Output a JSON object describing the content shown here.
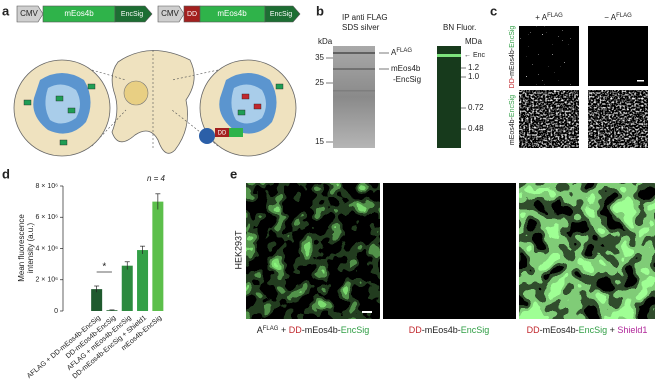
{
  "panel_a": {
    "label": "a",
    "constructs": [
      {
        "promoter": "CMV",
        "gene": "mEos4b",
        "tag": "EncSig"
      },
      {
        "promoter": "CMV",
        "degron": "DD",
        "gene": "mEos4b",
        "tag": "EncSig"
      }
    ],
    "degron_icon": "DD"
  },
  "panel_b": {
    "label": "b",
    "silver_gel": {
      "title": [
        "IP anti FLAG",
        "SDS silver"
      ],
      "unit": "kDa",
      "markers": [
        "35",
        "25",
        "15"
      ],
      "bands": [
        [
          "A",
          "FLAG"
        ],
        [
          "mEos4b",
          "-EncSig"
        ]
      ]
    },
    "native_gel": {
      "title": "BN Fluor.",
      "unit": "MDa",
      "band": "Enc",
      "markers": [
        "1.2",
        "1.0",
        "0.72",
        "0.48"
      ]
    }
  },
  "panel_c": {
    "label": "c",
    "columns": [
      [
        "+ A",
        "FLAG"
      ],
      [
        "− A",
        "FLAG"
      ]
    ],
    "rows": [
      [
        "DD",
        "-mEos4b-",
        "EncSig"
      ],
      [
        "mEos4b-",
        "EncSig"
      ]
    ]
  },
  "chart_data": {
    "type": "bar",
    "label": "d",
    "ylabel": [
      "Mean fluorescence",
      "intensity (a.u.)"
    ],
    "annotation": "n = 4",
    "significance": "*",
    "categories": [
      "AFLAG + DD-mEos4b-EncSig",
      "DD-mEos4b-EncSig",
      "AFLAG + mEos4b-EncSig",
      "DD-mEos4b-EncSig + Shield1",
      "mEos4b-EncSig"
    ],
    "values": [
      1400000,
      50000,
      2900000,
      3900000,
      7000000
    ],
    "errors": [
      200000,
      20000,
      250000,
      250000,
      500000
    ],
    "colors": [
      "#1f5a2e",
      "#246b34",
      "#2c8a3e",
      "#33a047",
      "#5cbf4b"
    ],
    "ylim": [
      0,
      8000000
    ],
    "yticks": [
      0,
      {
        "value": 2000000,
        "label": "2 × 10⁶"
      },
      {
        "value": 4000000,
        "label": "4 × 10⁶"
      },
      {
        "value": 6000000,
        "label": "6 × 10⁶"
      },
      {
        "value": 8000000,
        "label": "8 × 10⁶"
      }
    ]
  },
  "panel_e": {
    "label": "e",
    "cell_line": "HEK293T",
    "captions": [
      [
        "A",
        "FLAG",
        " + ",
        "DD",
        "-mEos4b-",
        "EncSig"
      ],
      [
        "DD",
        "-mEos4b-",
        "EncSig"
      ],
      [
        "DD",
        "-mEos4b-",
        "EncSig",
        " + ",
        "Shield1"
      ]
    ]
  }
}
